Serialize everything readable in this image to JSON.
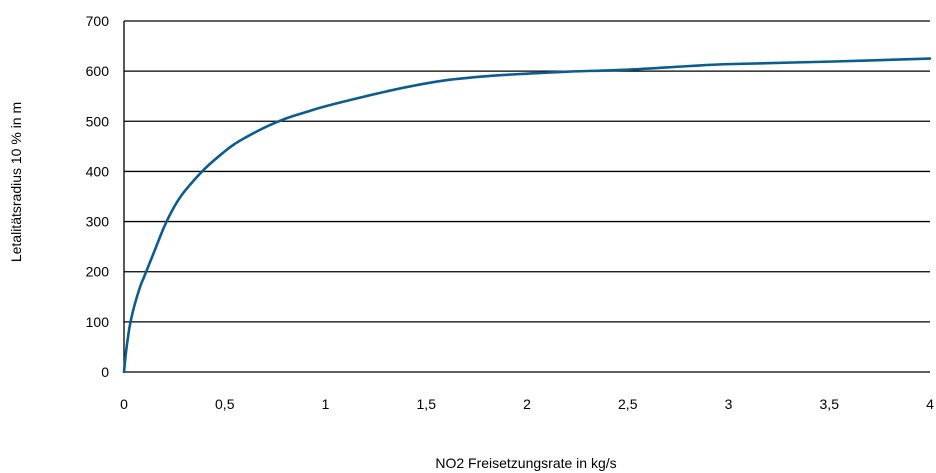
{
  "chart_data": {
    "type": "line",
    "title": "",
    "xlabel": "NO2 Freisetzungsrate in kg/s",
    "ylabel": "Letalitätsradius 10 % in m",
    "xlim": [
      0,
      4
    ],
    "ylim": [
      0,
      700
    ],
    "xticks": [
      0,
      0.5,
      1,
      1.5,
      2,
      2.5,
      3,
      3.5,
      4
    ],
    "xtick_labels": [
      "0",
      "0,5",
      "1",
      "1,5",
      "2",
      "2,5",
      "3",
      "3,5",
      "4"
    ],
    "yticks": [
      0,
      100,
      200,
      300,
      400,
      500,
      600,
      700
    ],
    "ytick_labels": [
      "0",
      "100",
      "200",
      "300",
      "400",
      "500",
      "600",
      "700"
    ],
    "grid": "horizontal",
    "legend": "none",
    "series": [
      {
        "color": "#0b5d8f",
        "x": [
          0,
          0.01,
          0.02,
          0.03,
          0.05,
          0.08,
          0.1,
          0.15,
          0.2,
          0.25,
          0.3,
          0.4,
          0.5,
          0.55,
          0.6,
          0.7,
          0.8,
          0.9,
          1.0,
          1.2,
          1.4,
          1.6,
          1.8,
          2.0,
          2.2,
          2.5,
          2.8,
          3.0,
          3.5,
          4.0
        ],
        "y": [
          0,
          40,
          70,
          95,
          130,
          170,
          190,
          240,
          290,
          330,
          360,
          405,
          440,
          455,
          467,
          488,
          505,
          518,
          530,
          550,
          568,
          582,
          590,
          595,
          599,
          603,
          610,
          614,
          619,
          625
        ]
      }
    ]
  }
}
